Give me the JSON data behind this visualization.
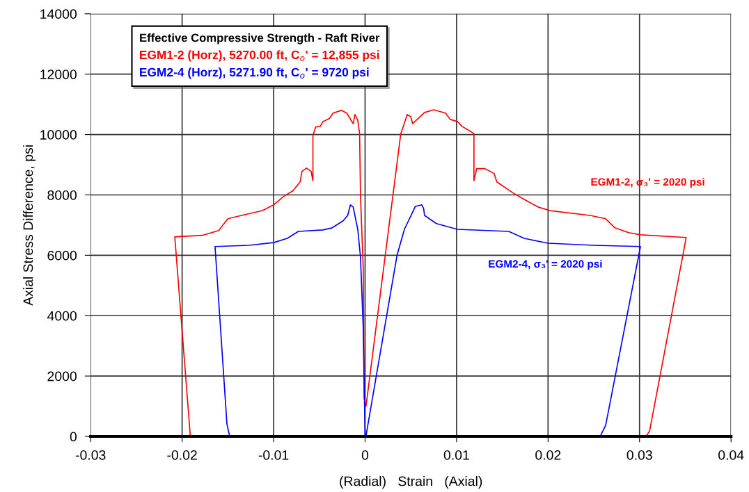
{
  "chart_data": {
    "type": "line",
    "xlabel": "(Radial)   Strain   (Axial)",
    "ylabel": "Axial Stress Difference, psi",
    "legend_title": "Effective Compressive Strength - Raft River",
    "xlim": [
      -0.03,
      0.04
    ],
    "xticks": [
      -0.03,
      -0.02,
      -0.01,
      0,
      0.01,
      0.02,
      0.03,
      0.04
    ],
    "ylim": [
      0,
      14000
    ],
    "yticks": [
      0,
      2000,
      4000,
      6000,
      8000,
      10000,
      12000,
      14000
    ],
    "grid": true,
    "legend": "top left",
    "marker": "none",
    "line_style": "solid",
    "series": [
      {
        "name": "EGM1-2 (Horz), 5270.00 ft, C$_{o}$' = 12,855 psi",
        "color": "#ff0000",
        "x": [
          -0.0191,
          -0.0208,
          -0.0178,
          -0.016,
          -0.015,
          -0.0135,
          -0.0112,
          -0.01,
          -0.0089,
          -0.0079,
          -0.0071,
          -0.0069,
          -0.0064,
          -0.0059,
          -0.0057,
          -0.0057,
          -0.0054,
          -0.0049,
          -0.0046,
          -0.0039,
          -0.0035,
          -0.0026,
          -0.002,
          -0.0013,
          -0.0011,
          -0.0008,
          -0.0006,
          -0.0005,
          -0.0002,
          -0.0001,
          0.0001,
          0.0039,
          0.0046,
          0.005,
          0.0052,
          0.0065,
          0.0075,
          0.0088,
          0.0093,
          0.0101,
          0.0106,
          0.0116,
          0.0119,
          0.0119,
          0.0122,
          0.0131,
          0.0141,
          0.0144,
          0.0162,
          0.0174,
          0.0189,
          0.0202,
          0.0246,
          0.0263,
          0.0273,
          0.0288,
          0.0301,
          0.0351,
          0.0347,
          0.0311,
          0.0307
        ],
        "values": [
          0,
          6610,
          6660,
          6820,
          7210,
          7320,
          7480,
          7670,
          7950,
          8130,
          8430,
          8780,
          8890,
          8780,
          8470,
          9970,
          10250,
          10270,
          10430,
          10530,
          10710,
          10800,
          10710,
          10360,
          10660,
          10470,
          10040,
          7950,
          5550,
          1270,
          1000,
          10020,
          10660,
          10590,
          10360,
          10730,
          10820,
          10710,
          10500,
          10430,
          10270,
          10090,
          10020,
          8470,
          8870,
          8870,
          8710,
          8430,
          8060,
          7850,
          7600,
          7480,
          7320,
          7210,
          6910,
          6750,
          6680,
          6590,
          5940,
          180,
          0
        ]
      },
      {
        "name": "EGM2-4 (Horz), 5271.90 ft, C$_{o}$' = 9720 psi",
        "color": "#0000ff",
        "x": [
          -0.014,
          -0.0148,
          -0.0151,
          -0.0164,
          -0.0127,
          -0.01,
          -0.0085,
          -0.0073,
          -0.0046,
          -0.0036,
          -0.0024,
          -0.0019,
          -0.0016,
          -0.0013,
          -0.0008,
          -0.0005,
          -0.0002,
          0,
          0.0001,
          0.0035,
          0.0043,
          0.0055,
          0.0062,
          0.0064,
          0.0065,
          0.0078,
          0.0101,
          0.0157,
          0.0174,
          0.02,
          0.025,
          0.0301,
          0.0263,
          0.0257,
          0.0246
        ],
        "values": [
          0,
          0,
          410,
          6290,
          6330,
          6420,
          6560,
          6790,
          6840,
          6910,
          7140,
          7320,
          7670,
          7600,
          6860,
          5940,
          3570,
          20,
          20,
          6010,
          6860,
          7620,
          7670,
          7550,
          7320,
          7050,
          6860,
          6790,
          6560,
          6400,
          6330,
          6290,
          370,
          0,
          0
        ]
      }
    ],
    "annotations": [
      "EGM1-2, σ₃' = 2020 psi",
      "EGM2-4, σ₃' = 2020 psi"
    ]
  }
}
